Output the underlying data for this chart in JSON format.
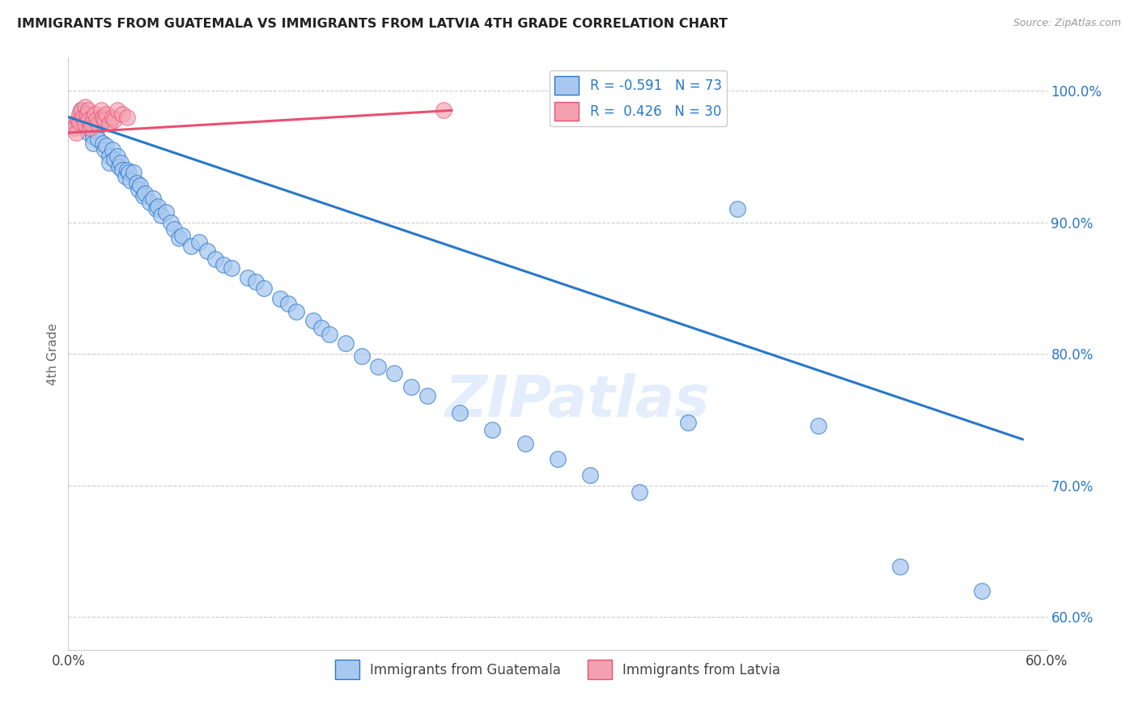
{
  "title": "IMMIGRANTS FROM GUATEMALA VS IMMIGRANTS FROM LATVIA 4TH GRADE CORRELATION CHART",
  "source": "Source: ZipAtlas.com",
  "ylabel": "4th Grade",
  "xlim": [
    0.0,
    0.6
  ],
  "ylim": [
    0.575,
    1.025
  ],
  "yticks": [
    0.6,
    0.7,
    0.8,
    0.9,
    1.0
  ],
  "ytick_labels": [
    "60.0%",
    "70.0%",
    "80.0%",
    "90.0%",
    "100.0%"
  ],
  "xticks": [
    0.0,
    0.1,
    0.2,
    0.3,
    0.4,
    0.5,
    0.6
  ],
  "xtick_labels": [
    "0.0%",
    "",
    "",
    "",
    "",
    "",
    "60.0%"
  ],
  "r_blue": -0.591,
  "n_blue": 73,
  "r_pink": 0.426,
  "n_pink": 30,
  "blue_color": "#a8c8f0",
  "pink_color": "#f4a0b0",
  "line_blue": "#2878c8",
  "line_pink": "#e85070",
  "legend_blue_label": "Immigrants from Guatemala",
  "legend_pink_label": "Immigrants from Latvia",
  "watermark": "ZIPatlas",
  "blue_scatter_x": [
    0.005,
    0.008,
    0.01,
    0.012,
    0.013,
    0.015,
    0.015,
    0.017,
    0.018,
    0.02,
    0.021,
    0.022,
    0.023,
    0.025,
    0.025,
    0.027,
    0.028,
    0.03,
    0.031,
    0.032,
    0.033,
    0.035,
    0.036,
    0.037,
    0.038,
    0.04,
    0.042,
    0.043,
    0.044,
    0.046,
    0.047,
    0.05,
    0.052,
    0.054,
    0.055,
    0.057,
    0.06,
    0.063,
    0.065,
    0.068,
    0.07,
    0.075,
    0.08,
    0.085,
    0.09,
    0.095,
    0.1,
    0.11,
    0.115,
    0.12,
    0.13,
    0.135,
    0.14,
    0.15,
    0.155,
    0.16,
    0.17,
    0.18,
    0.19,
    0.2,
    0.21,
    0.22,
    0.24,
    0.26,
    0.28,
    0.3,
    0.32,
    0.35,
    0.38,
    0.41,
    0.46,
    0.51,
    0.56
  ],
  "blue_scatter_y": [
    0.975,
    0.985,
    0.98,
    0.968,
    0.972,
    0.965,
    0.96,
    0.97,
    0.963,
    0.975,
    0.96,
    0.955,
    0.958,
    0.95,
    0.945,
    0.955,
    0.948,
    0.95,
    0.942,
    0.945,
    0.94,
    0.935,
    0.94,
    0.938,
    0.932,
    0.938,
    0.93,
    0.925,
    0.928,
    0.92,
    0.922,
    0.915,
    0.918,
    0.91,
    0.912,
    0.905,
    0.908,
    0.9,
    0.895,
    0.888,
    0.89,
    0.882,
    0.885,
    0.878,
    0.872,
    0.868,
    0.865,
    0.858,
    0.855,
    0.85,
    0.842,
    0.838,
    0.832,
    0.825,
    0.82,
    0.815,
    0.808,
    0.798,
    0.79,
    0.785,
    0.775,
    0.768,
    0.755,
    0.742,
    0.732,
    0.72,
    0.708,
    0.695,
    0.748,
    0.91,
    0.745,
    0.638,
    0.62
  ],
  "pink_scatter_x": [
    0.003,
    0.004,
    0.005,
    0.006,
    0.007,
    0.007,
    0.008,
    0.009,
    0.01,
    0.01,
    0.011,
    0.012,
    0.012,
    0.013,
    0.014,
    0.015,
    0.016,
    0.017,
    0.018,
    0.02,
    0.021,
    0.022,
    0.023,
    0.025,
    0.027,
    0.028,
    0.03,
    0.033,
    0.036,
    0.23
  ],
  "pink_scatter_y": [
    0.975,
    0.972,
    0.968,
    0.978,
    0.982,
    0.976,
    0.985,
    0.98,
    0.975,
    0.988,
    0.982,
    0.985,
    0.978,
    0.972,
    0.975,
    0.98,
    0.982,
    0.978,
    0.975,
    0.985,
    0.98,
    0.978,
    0.982,
    0.975,
    0.98,
    0.978,
    0.985,
    0.982,
    0.98,
    0.985
  ],
  "blue_line_x": [
    0.0,
    0.585
  ],
  "blue_line_y": [
    0.98,
    0.735
  ],
  "pink_line_x": [
    0.0,
    0.235
  ],
  "pink_line_y": [
    0.968,
    0.985
  ]
}
